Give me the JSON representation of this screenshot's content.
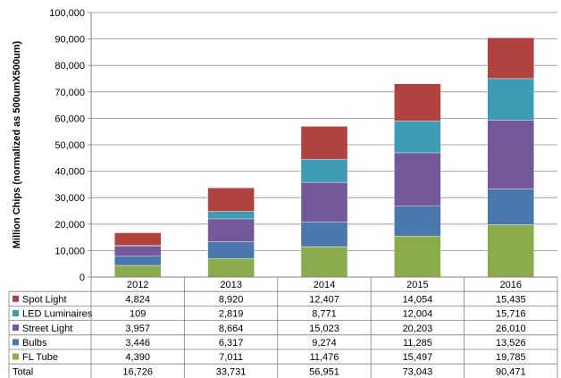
{
  "chart_data": {
    "type": "bar",
    "stacked": true,
    "title": "",
    "xlabel": "",
    "ylabel": "Million Chips  (normalized as 500umX500um)",
    "ylim": [
      0,
      100000
    ],
    "ytick_step": 10000,
    "grid": true,
    "categories": [
      "2012",
      "2013",
      "2014",
      "2015",
      "2016"
    ],
    "series": [
      {
        "name": "FL Tube",
        "color": "#8aac4c",
        "values": [
          4390,
          7011,
          11476,
          15497,
          19785
        ],
        "labels": [
          "4,390",
          "7,011",
          "11,476",
          "15,497",
          "19,785"
        ]
      },
      {
        "name": "Bulbs",
        "color": "#4a77ad",
        "values": [
          3446,
          6317,
          9274,
          11285,
          13526
        ],
        "labels": [
          "3,446",
          "6,317",
          "9,274",
          "11,285",
          "13,526"
        ]
      },
      {
        "name": "Street Light",
        "color": "#73589a",
        "values": [
          3957,
          8664,
          15023,
          20203,
          26010
        ],
        "labels": [
          "3,957",
          "8,664",
          "15,023",
          "20,203",
          "26,010"
        ]
      },
      {
        "name": "LED Luminaires",
        "color": "#3d9bb4",
        "values": [
          109,
          2819,
          8771,
          12004,
          15716
        ],
        "labels": [
          "109",
          "2,819",
          "8,771",
          "12,004",
          "15,716"
        ]
      },
      {
        "name": "Spot Light",
        "color": "#b04240",
        "values": [
          4824,
          8920,
          12407,
          14054,
          15435
        ],
        "labels": [
          "4,824",
          "8,920",
          "12,407",
          "14,054",
          "15,435"
        ]
      }
    ],
    "table_row_order": [
      "Spot Light",
      "LED Luminaires",
      "Street Light",
      "Bulbs",
      "FL Tube"
    ],
    "total": {
      "name": "Total",
      "values": [
        16726,
        33731,
        56951,
        73043,
        90471
      ],
      "labels": [
        "16,726",
        "33,731",
        "56,951",
        "73,043",
        "90,471"
      ]
    },
    "yticks": [
      "0",
      "10,000",
      "20,000",
      "30,000",
      "40,000",
      "50,000",
      "60,000",
      "70,000",
      "80,000",
      "90,000",
      "100,000"
    ]
  }
}
